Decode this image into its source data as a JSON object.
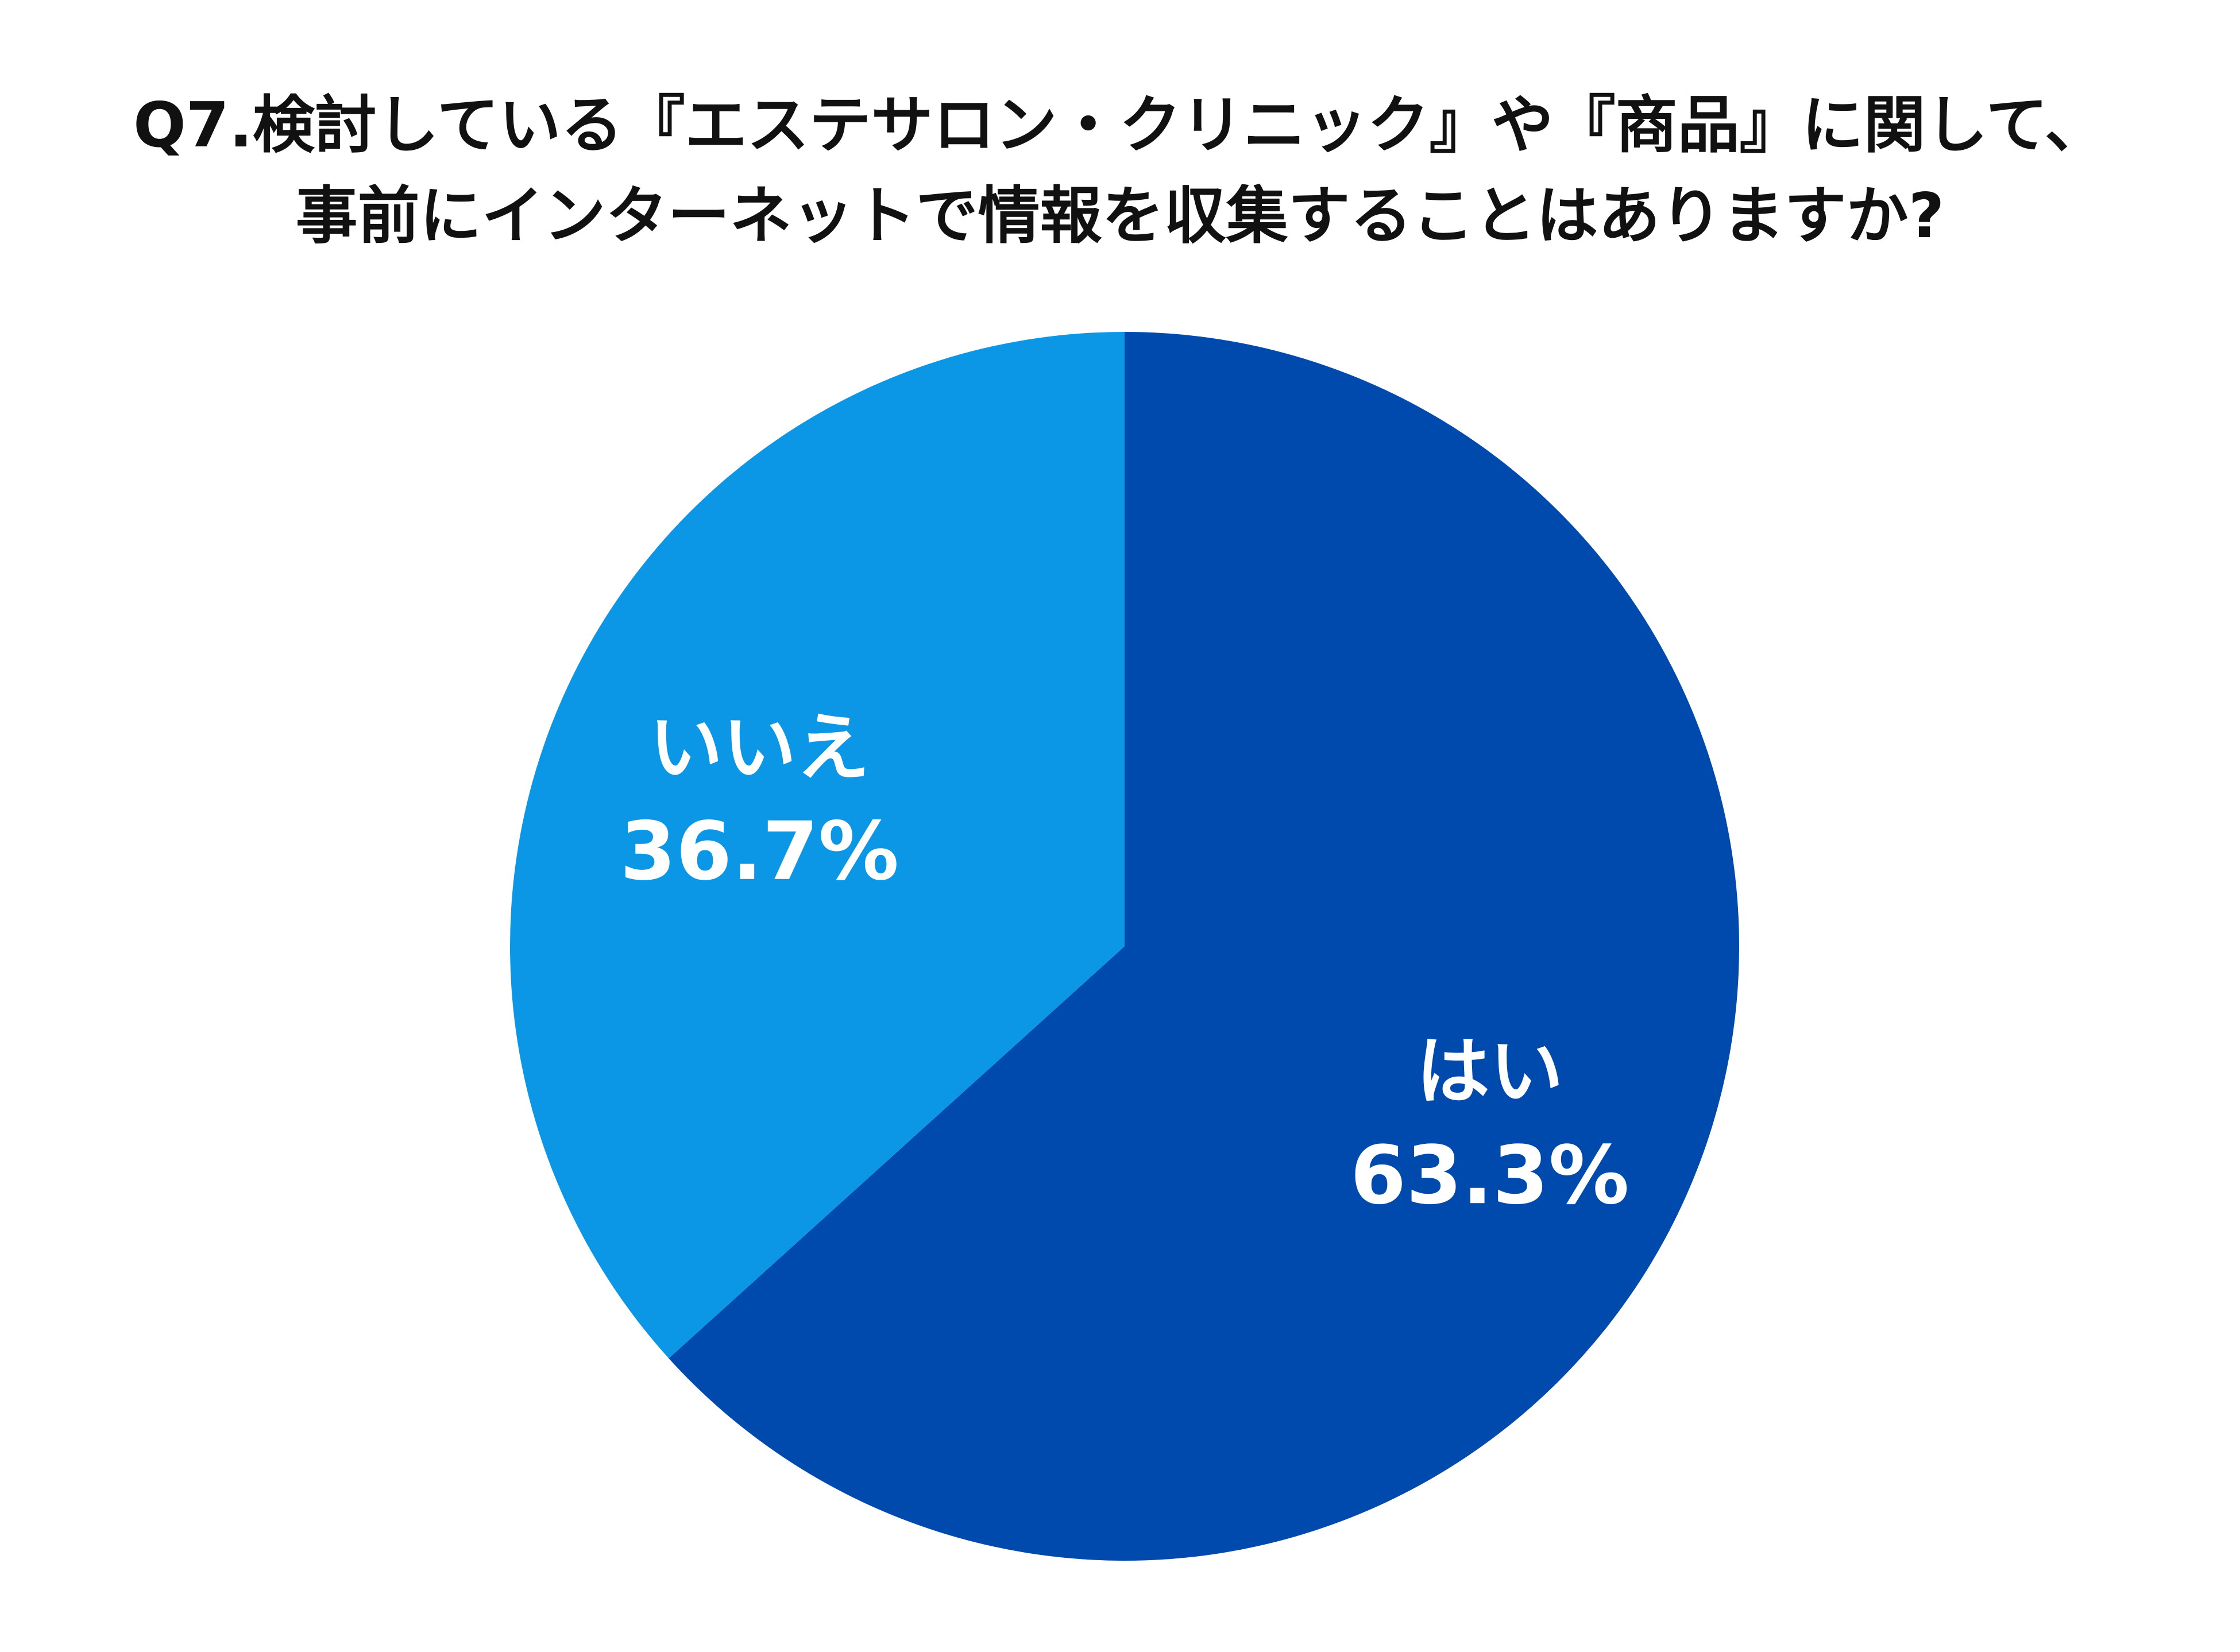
{
  "chart_data": {
    "type": "pie",
    "title_lines": [
      "Q7.検討している『エステサロン・クリニック』や『商品』に関して、",
      "事前にインターネットで情報を収集することはありますか?"
    ],
    "start_angle_deg": 0,
    "direction": "clockwise",
    "slices": [
      {
        "label": "はい",
        "value": 63.3,
        "value_label": "63.3%",
        "color": "#004aad"
      },
      {
        "label": "いいえ",
        "value": 36.7,
        "value_label": "36.7%",
        "color": "#0b96e6"
      }
    ]
  }
}
